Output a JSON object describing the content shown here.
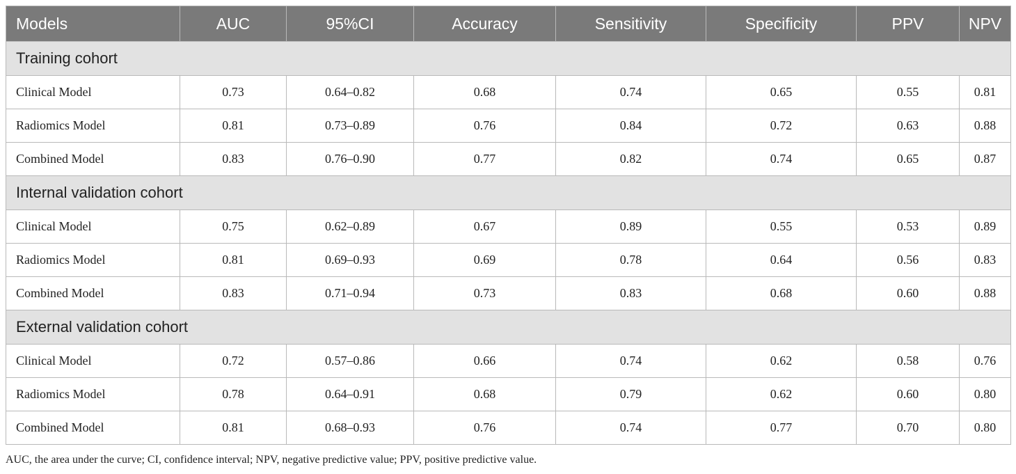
{
  "table": {
    "headers": [
      "Models",
      "AUC",
      "95%CI",
      "Accuracy",
      "Sensitivity",
      "Specificity",
      "PPV",
      "NPV"
    ],
    "sections": [
      {
        "title": "Training cohort",
        "rows": [
          [
            "Clinical Model",
            "0.73",
            "0.64–0.82",
            "0.68",
            "0.74",
            "0.65",
            "0.55",
            "0.81"
          ],
          [
            "Radiomics Model",
            "0.81",
            "0.73–0.89",
            "0.76",
            "0.84",
            "0.72",
            "0.63",
            "0.88"
          ],
          [
            "Combined Model",
            "0.83",
            "0.76–0.90",
            "0.77",
            "0.82",
            "0.74",
            "0.65",
            "0.87"
          ]
        ]
      },
      {
        "title": "Internal validation cohort",
        "rows": [
          [
            "Clinical Model",
            "0.75",
            "0.62–0.89",
            "0.67",
            "0.89",
            "0.55",
            "0.53",
            "0.89"
          ],
          [
            "Radiomics Model",
            "0.81",
            "0.69–0.93",
            "0.69",
            "0.78",
            "0.64",
            "0.56",
            "0.83"
          ],
          [
            "Combined Model",
            "0.83",
            "0.71–0.94",
            "0.73",
            "0.83",
            "0.68",
            "0.60",
            "0.88"
          ]
        ]
      },
      {
        "title": "External validation cohort",
        "rows": [
          [
            "Clinical Model",
            "0.72",
            "0.57–0.86",
            "0.66",
            "0.74",
            "0.62",
            "0.58",
            "0.76"
          ],
          [
            "Radiomics Model",
            "0.78",
            "0.64–0.91",
            "0.68",
            "0.79",
            "0.62",
            "0.60",
            "0.80"
          ],
          [
            "Combined Model",
            "0.81",
            "0.68–0.93",
            "0.76",
            "0.74",
            "0.77",
            "0.70",
            "0.80"
          ]
        ]
      }
    ]
  },
  "footnote": "AUC, the area under the curve; CI, confidence interval; NPV, negative predictive value; PPV, positive predictive value.",
  "colors": {
    "header_bg": "#7a7a7a",
    "header_text": "#ffffff",
    "section_bg": "#e2e2e2",
    "border": "#b9b9b9",
    "text": "#222222"
  }
}
